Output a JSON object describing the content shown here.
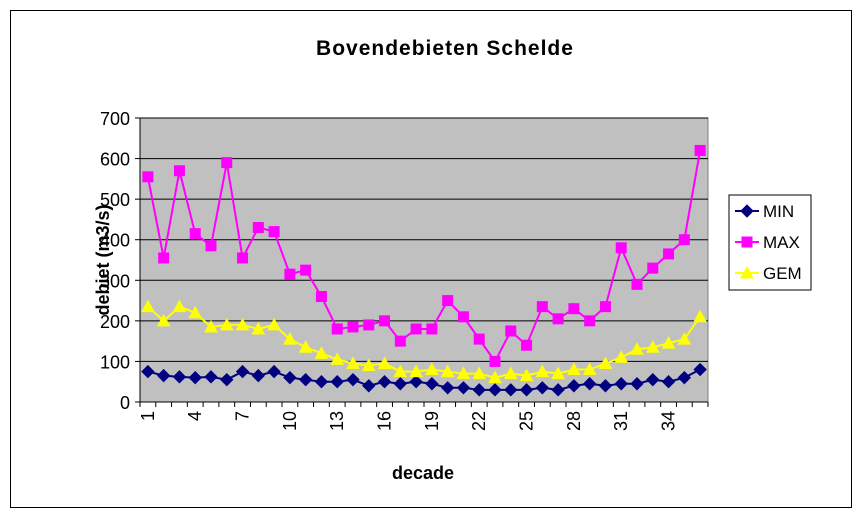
{
  "chart_data": {
    "type": "line",
    "title": "Bovendebieten Schelde",
    "x_label": "decade",
    "y_label": "debiet (m3/s)",
    "categories": [
      1,
      null,
      null,
      4,
      null,
      null,
      7,
      null,
      null,
      10,
      null,
      null,
      13,
      null,
      null,
      16,
      null,
      null,
      19,
      null,
      null,
      22,
      null,
      null,
      25,
      null,
      null,
      28,
      null,
      null,
      31,
      null,
      null,
      34,
      null,
      null
    ],
    "series": [
      {
        "name": "MIN",
        "color": "#000080",
        "marker": "diamond",
        "values": [
          75,
          65,
          62,
          60,
          62,
          55,
          75,
          65,
          75,
          60,
          55,
          50,
          50,
          55,
          40,
          50,
          45,
          50,
          45,
          35,
          35,
          30,
          30,
          30,
          30,
          35,
          30,
          40,
          45,
          40,
          45,
          45,
          55,
          50,
          60,
          80
        ]
      },
      {
        "name": "MAX",
        "color": "#ff00ff",
        "marker": "square",
        "values": [
          555,
          355,
          570,
          415,
          385,
          590,
          355,
          430,
          420,
          315,
          325,
          260,
          180,
          185,
          190,
          200,
          150,
          180,
          180,
          250,
          210,
          155,
          100,
          175,
          140,
          235,
          205,
          230,
          200,
          235,
          380,
          290,
          330,
          365,
          400,
          620
        ]
      },
      {
        "name": "GEM",
        "color": "#ffff00",
        "marker": "triangle",
        "values": [
          235,
          200,
          235,
          220,
          185,
          190,
          190,
          180,
          190,
          155,
          135,
          120,
          105,
          95,
          90,
          95,
          75,
          75,
          80,
          75,
          70,
          70,
          60,
          70,
          65,
          75,
          70,
          80,
          80,
          95,
          110,
          130,
          135,
          145,
          155,
          210
        ]
      }
    ],
    "ylim": [
      0,
      700
    ],
    "yticks": [
      0,
      100,
      200,
      300,
      400,
      500,
      600,
      700
    ],
    "grid": true,
    "plot_background": "#c0c0c0",
    "legend": "right"
  }
}
